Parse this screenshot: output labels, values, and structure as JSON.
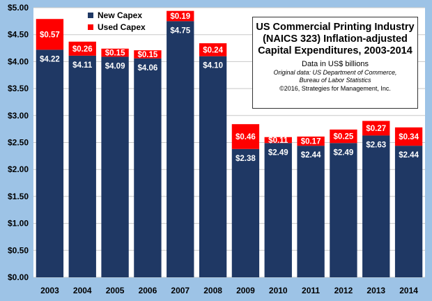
{
  "chart_data": {
    "type": "bar",
    "stacked": true,
    "title_lines": [
      "US Commercial Printing Industry",
      "(NAICS 323) Inflation-adjusted",
      "Capital Expenditures, 2003-2014"
    ],
    "subtitle": "Data in US$ billions",
    "source_line1": "Original data: US Department of Commerce,",
    "source_line2": "Bureau of Labor Statistics",
    "copyright": "©2016, Strategies for Management, Inc.",
    "categories": [
      "2003",
      "2004",
      "2005",
      "2006",
      "2007",
      "2008",
      "2009",
      "2010",
      "2011",
      "2012",
      "2013",
      "2014"
    ],
    "series": [
      {
        "name": "New Capex",
        "color": "#1f3864",
        "values": [
          4.22,
          4.11,
          4.09,
          4.06,
          4.75,
          4.1,
          2.38,
          2.49,
          2.44,
          2.49,
          2.63,
          2.44
        ],
        "labels": [
          "$4.22",
          "$4.11",
          "$4.09",
          "$4.06",
          "$4.75",
          "$4.10",
          "$2.38",
          "$2.49",
          "$2.44",
          "$2.49",
          "$2.63",
          "$2.44"
        ]
      },
      {
        "name": "Used Capex",
        "color": "#ff0000",
        "values": [
          0.57,
          0.26,
          0.15,
          0.15,
          0.19,
          0.24,
          0.46,
          0.11,
          0.17,
          0.25,
          0.27,
          0.34
        ],
        "labels": [
          "$0.57",
          "$0.26",
          "$0.15",
          "$0.15",
          "$0.19",
          "$0.24",
          "$0.46",
          "$0.11",
          "$0.17",
          "$0.25",
          "$0.27",
          "$0.34"
        ]
      }
    ],
    "ylim": [
      0,
      5
    ],
    "yticks": [
      0,
      0.5,
      1,
      1.5,
      2,
      2.5,
      3,
      3.5,
      4,
      4.5,
      5
    ],
    "ytick_labels": [
      "$0.00",
      "$0.50",
      "$1.00",
      "$1.50",
      "$2.00",
      "$2.50",
      "$3.00",
      "$3.50",
      "$4.00",
      "$4.50",
      "$5.00"
    ],
    "grid": true,
    "legend_position": "top-left",
    "plot_background": "#ffffff",
    "page_background": "#9dc3e6"
  }
}
